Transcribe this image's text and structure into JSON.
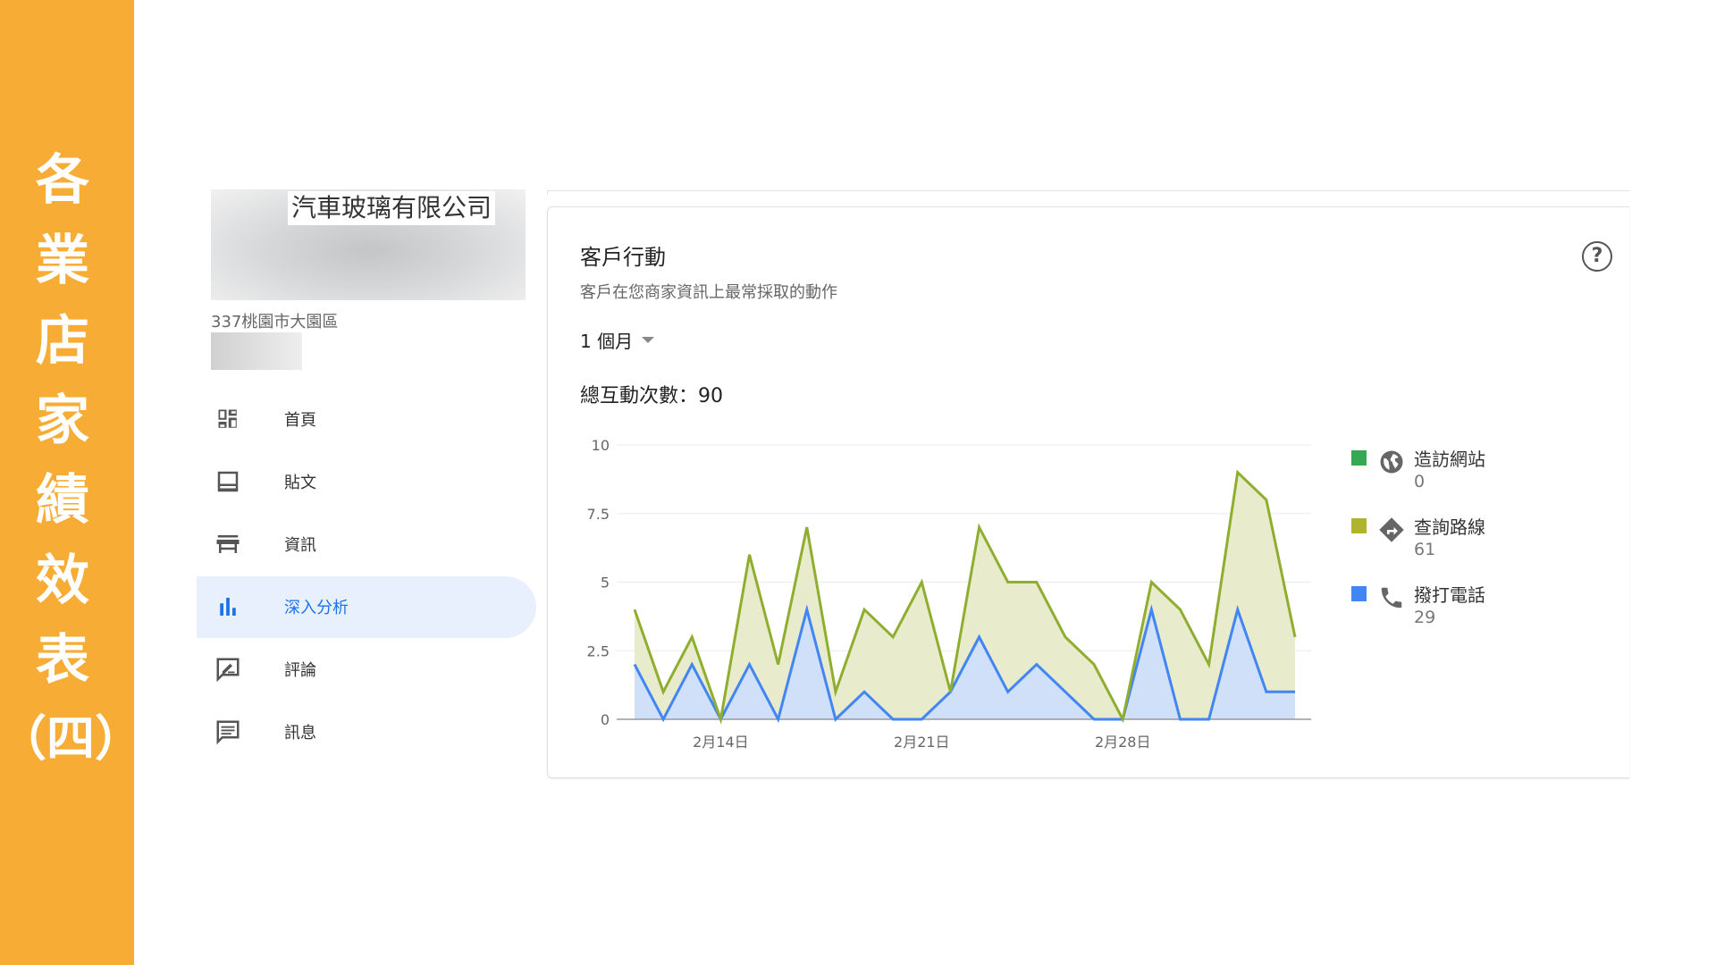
{
  "banner": {
    "title_chars": [
      "各",
      "業",
      "店",
      "家",
      "績",
      "效",
      "表",
      "（四）"
    ]
  },
  "business": {
    "name": "汽車玻璃有限公司",
    "address": "337桃園市大園區"
  },
  "nav": {
    "items": [
      {
        "label": "首頁",
        "icon": "dashboard-icon"
      },
      {
        "label": "貼文",
        "icon": "posts-icon"
      },
      {
        "label": "資訊",
        "icon": "storefront-icon"
      },
      {
        "label": "深入分析",
        "icon": "bar-chart-icon",
        "active": true
      },
      {
        "label": "評論",
        "icon": "rate-review-icon"
      },
      {
        "label": "訊息",
        "icon": "message-icon"
      }
    ]
  },
  "card": {
    "title": "客戶行動",
    "subtitle": "客戶在您商家資訊上最常採取的動作",
    "period": "1 個月",
    "total_label": "總互動次數：90"
  },
  "legend": [
    {
      "label": "造訪網站",
      "value": "0",
      "color": "#34a853",
      "icon": "globe-icon"
    },
    {
      "label": "查詢路線",
      "value": "61",
      "color": "#afb42b",
      "icon": "directions-icon"
    },
    {
      "label": "撥打電話",
      "value": "29",
      "color": "#4285f4",
      "icon": "phone-icon"
    }
  ],
  "chart_data": {
    "type": "area",
    "stacked": true,
    "x": [
      "2/11",
      "2/12",
      "2/13",
      "2/14",
      "2/15",
      "2/16",
      "2/17",
      "2/18",
      "2/19",
      "2/20",
      "2/21",
      "2/22",
      "2/23",
      "2/24",
      "2/25",
      "2/26",
      "2/27",
      "2/28",
      "3/1",
      "3/2",
      "3/3",
      "3/4",
      "3/5",
      "3/6"
    ],
    "xtick_labels": [
      {
        "at": "2/14",
        "label": "2月14日"
      },
      {
        "at": "2/21",
        "label": "2月21日"
      },
      {
        "at": "2/28",
        "label": "2月28日"
      }
    ],
    "ytick_labels": [
      "0",
      "2.5",
      "5",
      "7.5",
      "10"
    ],
    "ylim": [
      0,
      10
    ],
    "grid": true,
    "legend_position": "right",
    "series": [
      {
        "name": "撥打電話",
        "color": "#4285f4",
        "fill": "#cfe0f8",
        "values": [
          2,
          0,
          2,
          0,
          2,
          0,
          4,
          0,
          1,
          0,
          0,
          1,
          3,
          1,
          2,
          1,
          0,
          0,
          4,
          0,
          0,
          4,
          1,
          1
        ]
      },
      {
        "name": "查詢路線",
        "color": "#8fae2f",
        "fill": "#e8ebcc",
        "values": [
          2,
          1,
          1,
          0,
          4,
          2,
          3,
          1,
          3,
          3,
          5,
          0,
          4,
          4,
          3,
          2,
          2,
          0,
          1,
          4,
          2,
          5,
          7,
          2
        ]
      },
      {
        "name": "造訪網站",
        "color": "#34a853",
        "values": [
          0,
          0,
          0,
          0,
          0,
          0,
          0,
          0,
          0,
          0,
          0,
          0,
          0,
          0,
          0,
          0,
          0,
          0,
          0,
          0,
          0,
          0,
          0,
          0
        ]
      }
    ]
  }
}
